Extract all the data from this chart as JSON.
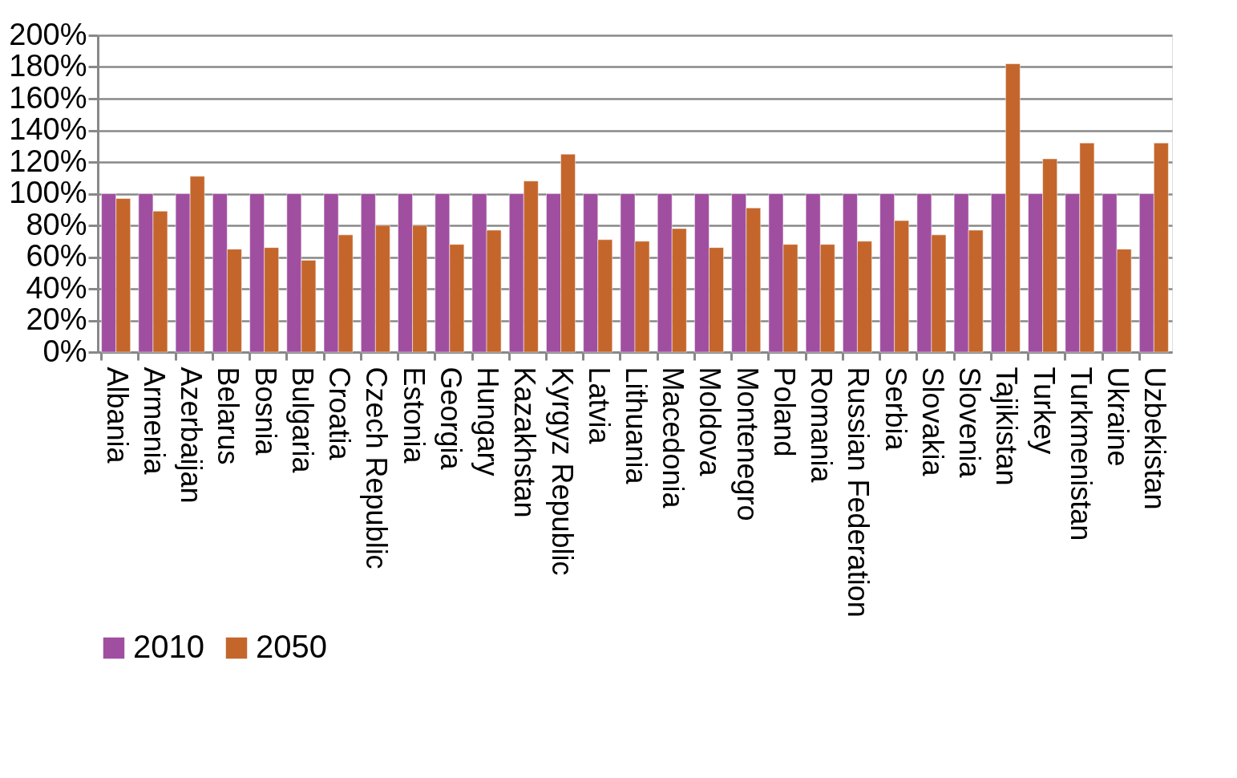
{
  "chart_data": {
    "type": "bar",
    "categories": [
      "Albania",
      "Armenia",
      "Azerbaijan",
      "Belarus",
      "Bosnia",
      "Bulgaria",
      "Croatia",
      "Czech Republic",
      "Estonia",
      "Georgia",
      "Hungary",
      "Kazakhstan",
      "Kyrgyz Republic",
      "Latvia",
      "Lithuania",
      "Macedonia",
      "Moldova",
      "Montenegro",
      "Poland",
      "Romania",
      "Russian Federation",
      "Serbia",
      "Slovakia",
      "Slovenia",
      "Tajikistan",
      "Turkey",
      "Turkmenistan",
      "Ukraine",
      "Uzbekistan"
    ],
    "series": [
      {
        "name": "2010",
        "color": "#a04fa0",
        "values": [
          100,
          100,
          100,
          100,
          100,
          100,
          100,
          100,
          100,
          100,
          100,
          100,
          100,
          100,
          100,
          100,
          100,
          100,
          100,
          100,
          100,
          100,
          100,
          100,
          100,
          100,
          100,
          100,
          100
        ]
      },
      {
        "name": "2050",
        "color": "#c4662c",
        "values": [
          97,
          89,
          111,
          65,
          66,
          58,
          74,
          80,
          80,
          68,
          77,
          108,
          125,
          71,
          70,
          78,
          66,
          91,
          68,
          68,
          70,
          83,
          74,
          77,
          182,
          122,
          132,
          65,
          132
        ]
      }
    ],
    "ylim": [
      0,
      200
    ],
    "yticks": [
      {
        "value": 0,
        "label": "0%"
      },
      {
        "value": 20,
        "label": "20%"
      },
      {
        "value": 40,
        "label": "40%"
      },
      {
        "value": 60,
        "label": "60%"
      },
      {
        "value": 80,
        "label": "80%"
      },
      {
        "value": 100,
        "label": "100%"
      },
      {
        "value": 120,
        "label": "120%"
      },
      {
        "value": 140,
        "label": "140%"
      },
      {
        "value": 160,
        "label": "160%"
      },
      {
        "value": 180,
        "label": "180%"
      },
      {
        "value": 200,
        "label": "200%"
      }
    ],
    "grid": "y",
    "legend": "bottom"
  }
}
